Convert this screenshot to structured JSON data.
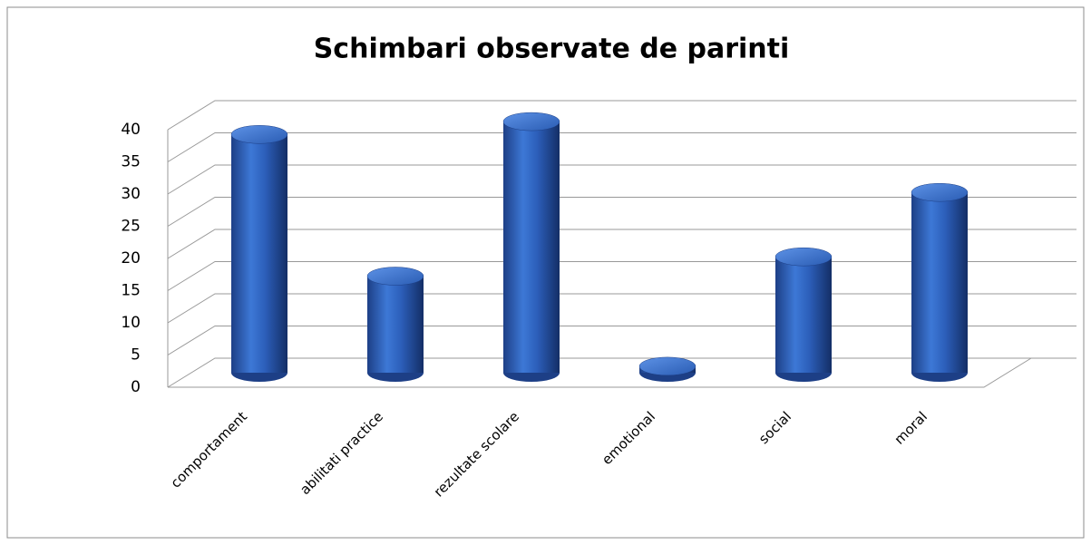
{
  "chart_data": {
    "type": "bar",
    "title": "Schimbari observate de parinti",
    "categories": [
      "comportament",
      "abilitati practice",
      "rezultate scolare",
      "emotional",
      "social",
      "moral"
    ],
    "values": [
      37,
      15,
      39,
      1,
      18,
      28
    ],
    "color": "#2f63b8",
    "ylim": [
      0,
      40
    ],
    "yticks": [
      0,
      5,
      10,
      15,
      20,
      25,
      30,
      35,
      40
    ],
    "grid": true
  }
}
